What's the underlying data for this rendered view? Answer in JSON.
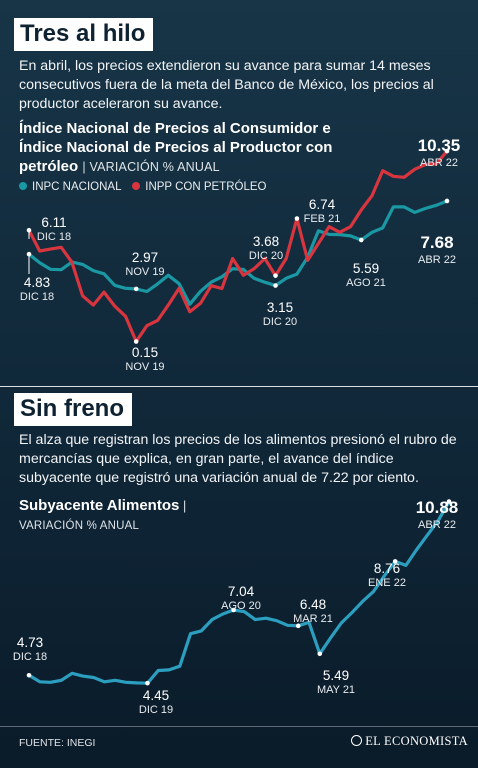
{
  "section1": {
    "title": "Tres al hilo",
    "paragraph": "En abril, los precios extendieron su avance para sumar 14 meses consecutivos fuera de la meta del Banco de México, los precios al productor aceleraron su avance.",
    "chart_title_1": "Índice Nacional de Precios al Consumidor e",
    "chart_title_2": "Índice Nacional de Precios al Productor con",
    "chart_title_3": "petróleo",
    "unit": "VARIACIÓN % ANUAL"
  },
  "section2": {
    "title": "Sin freno",
    "paragraph": "El alza que registran los precios de los alimentos presionó el rubro de mercancías que explica, en gran parte, el avance del índice subyacente que registró una variación anual de 7.22 por ciento.",
    "chart_title": "Subyacente Alimentos",
    "unit": "VARIACIÓN % ANUAL"
  },
  "footer": {
    "source": "FUENTE: INEGI",
    "brand": "EL ECONOMISTA"
  },
  "colors": {
    "inpc": "#1a98a3",
    "inpp": "#d9353f",
    "alimentos": "#2c9fc0",
    "background": "#12293a"
  },
  "chart_data": [
    {
      "type": "line",
      "title": "Índice Nacional de Precios al Consumidor e Índice Nacional de Precios al Productor con petróleo",
      "ylabel": "VARIACIÓN % ANUAL",
      "legend_position": "top-left",
      "grid": false,
      "ylim": [
        -1,
        11
      ],
      "series": [
        {
          "name": "INPC NACIONAL",
          "color": "#1a98a3",
          "values": [
            4.83,
            4.37,
            4.02,
            4.0,
            4.41,
            4.28,
            3.95,
            3.78,
            3.16,
            3.0,
            2.97,
            2.83,
            3.24,
            3.7,
            3.25,
            2.15,
            2.84,
            3.33,
            3.62,
            4.05,
            4.01,
            3.54,
            3.33,
            3.15,
            3.54,
            3.76,
            4.67,
            6.08,
            5.89,
            5.88,
            5.81,
            5.59,
            6.0,
            6.24,
            7.37,
            7.36,
            7.07,
            7.28,
            7.45,
            7.68
          ],
          "annotations": [
            {
              "index": 0,
              "value": "4.83",
              "label": "DIC 18"
            },
            {
              "index": 10,
              "value": "2.97",
              "label": "NOV 19"
            },
            {
              "index": 23,
              "value": "3.15",
              "label": "DIC 20"
            },
            {
              "index": 31,
              "value": "5.59",
              "label": "AGO 21"
            },
            {
              "index": 39,
              "value": "7.68",
              "label": "ABR 22"
            }
          ]
        },
        {
          "name": "INPP CON PETRÓLEO",
          "color": "#d9353f",
          "values": [
            6.11,
            5.0,
            5.1,
            5.2,
            4.4,
            2.6,
            2.1,
            2.8,
            2.05,
            1.5,
            0.15,
            1.0,
            1.28,
            2.1,
            3.0,
            1.75,
            2.2,
            3.14,
            2.99,
            4.6,
            3.7,
            4.05,
            4.6,
            3.68,
            4.6,
            6.74,
            4.5,
            5.4,
            6.3,
            6.0,
            6.3,
            7.2,
            7.96,
            9.3,
            9.0,
            8.95,
            9.38,
            9.64,
            9.66,
            10.35
          ],
          "annotations": [
            {
              "index": 0,
              "value": "6.11",
              "label": "DIC 18"
            },
            {
              "index": 10,
              "value": "0.15",
              "label": "NOV 19"
            },
            {
              "index": 23,
              "value": "3.68",
              "label": "DIC 20"
            },
            {
              "index": 25,
              "value": "6.74",
              "label": "FEB 21"
            },
            {
              "index": 39,
              "value": "10.35",
              "label": "ABR 22"
            }
          ]
        }
      ]
    },
    {
      "type": "line",
      "title": "Subyacente Alimentos",
      "ylabel": "VARIACIÓN % ANUAL",
      "grid": false,
      "ylim": [
        3.5,
        11.5
      ],
      "series": [
        {
          "name": "Subyacente Alimentos",
          "color": "#2c9fc0",
          "values": [
            4.73,
            4.5,
            4.48,
            4.55,
            4.8,
            4.7,
            4.65,
            4.5,
            4.55,
            4.48,
            4.46,
            4.45,
            4.9,
            4.92,
            5.05,
            6.2,
            6.3,
            6.7,
            6.9,
            7.04,
            6.98,
            6.7,
            6.75,
            6.66,
            6.5,
            6.48,
            6.6,
            5.49,
            6.05,
            6.58,
            6.95,
            7.35,
            7.7,
            8.25,
            8.76,
            8.62,
            9.18,
            9.7,
            10.2,
            10.88
          ],
          "annotations": [
            {
              "index": 0,
              "value": "4.73",
              "label": "DIC 18"
            },
            {
              "index": 11,
              "value": "4.45",
              "label": "DIC 19"
            },
            {
              "index": 19,
              "value": "7.04",
              "label": "AGO 20"
            },
            {
              "index": 25,
              "value": "6.48",
              "label": "MAR 21"
            },
            {
              "index": 27,
              "value": "5.49",
              "label": "MAY 21"
            },
            {
              "index": 34,
              "value": "8.76",
              "label": "ENE 22"
            },
            {
              "index": 39,
              "value": "10.88",
              "label": "ABR 22"
            }
          ]
        }
      ]
    }
  ]
}
